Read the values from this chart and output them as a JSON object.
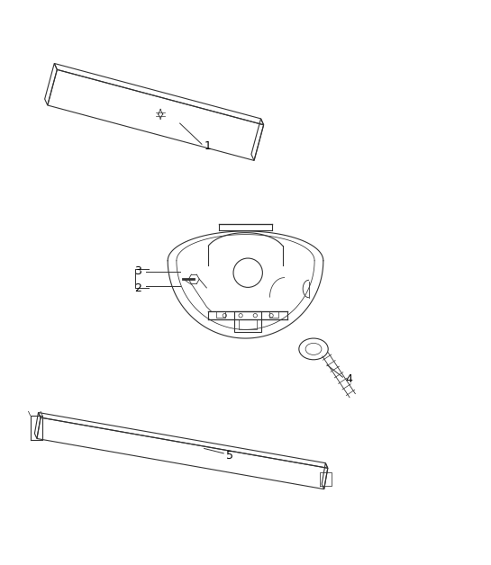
{
  "title": "",
  "background_color": "#ffffff",
  "line_color": "#333333",
  "label_color": "#000000",
  "items": [
    {
      "id": 1,
      "label": "1"
    },
    {
      "id": 2,
      "label": "2"
    },
    {
      "id": 3,
      "label": "3"
    },
    {
      "id": 4,
      "label": "4"
    },
    {
      "id": 5,
      "label": "5"
    }
  ],
  "figsize": [
    5.45,
    6.28
  ],
  "dpi": 100
}
